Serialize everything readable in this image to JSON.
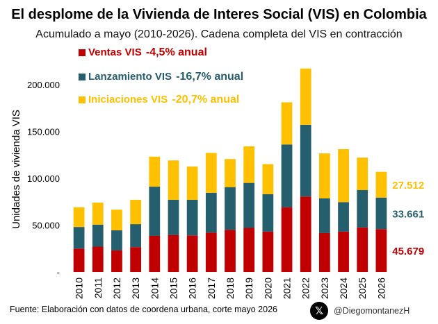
{
  "title": "El desplome de la Vivienda de Interes Social (VIS) en Colombia",
  "subtitle": "Acumulado a mayo (2010-2026). Cadena completa del VIS en contracción",
  "footer": "Fuente: Elaboración con datos de coordena urbana, corte mayo 2026",
  "handle": "@DiegomontanezH",
  "logo_icon": "x-logo-icon",
  "chart_data": {
    "type": "bar",
    "stacked": true,
    "categories": [
      "2010",
      "2011",
      "2012",
      "2013",
      "2014",
      "2015",
      "2016",
      "2017",
      "2018",
      "2019",
      "2020",
      "2021",
      "2022",
      "2023",
      "2024",
      "2025",
      "2026"
    ],
    "ylabel": "Unidades de vivienda VIS",
    "ylim": [
      0,
      225000
    ],
    "yticks": [
      {
        "value": 0,
        "label": "-"
      },
      {
        "value": 50000,
        "label": "50.000"
      },
      {
        "value": 100000,
        "label": "100.000"
      },
      {
        "value": 150000,
        "label": "150.000"
      },
      {
        "value": 200000,
        "label": "200.000"
      }
    ],
    "grid": false,
    "legend_position": "top-left",
    "series": [
      {
        "name": "Ventas VIS",
        "change": "-4,5% anual",
        "color": "#c00000",
        "values": [
          25000,
          27000,
          23000,
          26500,
          38500,
          39500,
          39000,
          42000,
          45000,
          47000,
          43000,
          69000,
          80500,
          41500,
          43000,
          47500,
          45679
        ]
      },
      {
        "name": "Lanzamiento VIS",
        "change": "-16,7% anual",
        "color": "#255e6d",
        "values": [
          23000,
          23500,
          21500,
          24500,
          52500,
          37500,
          38000,
          42500,
          45500,
          48000,
          40000,
          67000,
          76500,
          37000,
          31500,
          40000,
          33661
        ]
      },
      {
        "name": "Iniciaciones VIS",
        "change": "-20,7% anual",
        "color": "#ffc000",
        "values": [
          21000,
          23500,
          22000,
          26000,
          32000,
          42000,
          35500,
          42500,
          30000,
          39000,
          32000,
          45000,
          60000,
          48000,
          56500,
          34500,
          27512
        ]
      }
    ],
    "annotations": [
      {
        "series": "Iniciaciones VIS",
        "category": "2026",
        "text": "27.512",
        "color": "#ffc000"
      },
      {
        "series": "Lanzamiento VIS",
        "category": "2026",
        "text": "33.661",
        "color": "#255e6d"
      },
      {
        "series": "Ventas VIS",
        "category": "2026",
        "text": "45.679",
        "color": "#c00000"
      }
    ]
  }
}
